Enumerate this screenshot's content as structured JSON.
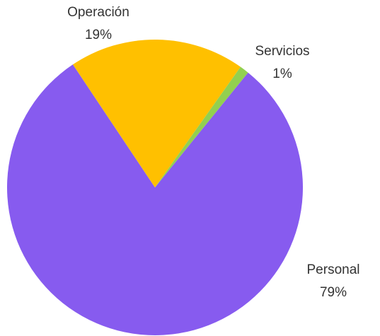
{
  "chart_data": {
    "type": "pie",
    "categories": [
      "Personal",
      "Operación",
      "Servicios"
    ],
    "values": [
      79,
      19,
      1
    ],
    "value_labels": [
      "79%",
      "19%",
      "1%"
    ],
    "colors": [
      "#875bef",
      "#ffc000",
      "#92d050"
    ]
  }
}
